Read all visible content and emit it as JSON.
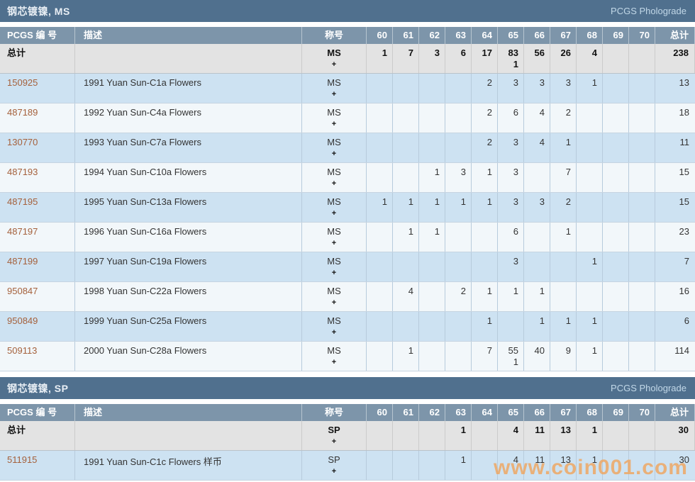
{
  "watermark": "www.coin001.com",
  "columns": {
    "pcgs": "PCGS 编 号",
    "desc": "描述",
    "designation": "称号",
    "grades": [
      "60",
      "61",
      "62",
      "63",
      "64",
      "65",
      "66",
      "67",
      "68",
      "69",
      "70"
    ],
    "total": "总计"
  },
  "sections": [
    {
      "title": "钢芯镀镍, MS",
      "brand": "PCGS Pholograde",
      "rows": [
        {
          "type": "total",
          "pcgs": "总计",
          "desc": "",
          "designation": "MS",
          "plus": "+",
          "cells": [
            [
              "1",
              ""
            ],
            [
              "7",
              ""
            ],
            [
              "3",
              ""
            ],
            [
              "6",
              ""
            ],
            [
              "17",
              ""
            ],
            [
              "83",
              "1"
            ],
            [
              "56",
              ""
            ],
            [
              "26",
              ""
            ],
            [
              "4",
              ""
            ],
            [
              "",
              ""
            ],
            [
              "",
              ""
            ]
          ],
          "total": "238"
        },
        {
          "pcgs": "150925",
          "desc": "1991 Yuan Sun-C1a Flowers",
          "designation": "MS",
          "plus": "+",
          "cells": [
            [
              "",
              ""
            ],
            [
              "",
              ""
            ],
            [
              "",
              ""
            ],
            [
              "",
              ""
            ],
            [
              "2",
              ""
            ],
            [
              "3",
              ""
            ],
            [
              "3",
              ""
            ],
            [
              "3",
              ""
            ],
            [
              "1",
              ""
            ],
            [
              "",
              ""
            ],
            [
              "",
              ""
            ]
          ],
          "total": "13"
        },
        {
          "pcgs": "487189",
          "desc": "1992 Yuan Sun-C4a Flowers",
          "designation": "MS",
          "plus": "+",
          "cells": [
            [
              "",
              ""
            ],
            [
              "",
              ""
            ],
            [
              "",
              ""
            ],
            [
              "",
              ""
            ],
            [
              "2",
              ""
            ],
            [
              "6",
              ""
            ],
            [
              "4",
              ""
            ],
            [
              "2",
              ""
            ],
            [
              "",
              ""
            ],
            [
              "",
              ""
            ],
            [
              "",
              ""
            ]
          ],
          "total": "18"
        },
        {
          "pcgs": "130770",
          "desc": "1993 Yuan Sun-C7a Flowers",
          "designation": "MS",
          "plus": "+",
          "cells": [
            [
              "",
              ""
            ],
            [
              "",
              ""
            ],
            [
              "",
              ""
            ],
            [
              "",
              ""
            ],
            [
              "2",
              ""
            ],
            [
              "3",
              ""
            ],
            [
              "4",
              ""
            ],
            [
              "1",
              ""
            ],
            [
              "",
              ""
            ],
            [
              "",
              ""
            ],
            [
              "",
              ""
            ]
          ],
          "total": "11"
        },
        {
          "pcgs": "487193",
          "desc": "1994 Yuan Sun-C10a Flowers",
          "designation": "MS",
          "plus": "+",
          "cells": [
            [
              "",
              ""
            ],
            [
              "",
              ""
            ],
            [
              "1",
              ""
            ],
            [
              "3",
              ""
            ],
            [
              "1",
              ""
            ],
            [
              "3",
              ""
            ],
            [
              "",
              ""
            ],
            [
              "7",
              ""
            ],
            [
              "",
              ""
            ],
            [
              "",
              ""
            ],
            [
              "",
              ""
            ]
          ],
          "total": "15"
        },
        {
          "pcgs": "487195",
          "desc": "1995 Yuan Sun-C13a Flowers",
          "designation": "MS",
          "plus": "+",
          "cells": [
            [
              "1",
              ""
            ],
            [
              "1",
              ""
            ],
            [
              "1",
              ""
            ],
            [
              "1",
              ""
            ],
            [
              "1",
              ""
            ],
            [
              "3",
              ""
            ],
            [
              "3",
              ""
            ],
            [
              "2",
              ""
            ],
            [
              "",
              ""
            ],
            [
              "",
              ""
            ],
            [
              "",
              ""
            ]
          ],
          "total": "15"
        },
        {
          "pcgs": "487197",
          "desc": "1996 Yuan Sun-C16a Flowers",
          "designation": "MS",
          "plus": "+",
          "cells": [
            [
              "",
              ""
            ],
            [
              "1",
              ""
            ],
            [
              "1",
              ""
            ],
            [
              "",
              ""
            ],
            [
              "",
              ""
            ],
            [
              "6",
              ""
            ],
            [
              "",
              ""
            ],
            [
              "1",
              ""
            ],
            [
              "",
              ""
            ],
            [
              "",
              ""
            ],
            [
              "",
              ""
            ]
          ],
          "total": "23"
        },
        {
          "pcgs": "487199",
          "desc": "1997 Yuan Sun-C19a Flowers",
          "designation": "MS",
          "plus": "+",
          "cells": [
            [
              "",
              ""
            ],
            [
              "",
              ""
            ],
            [
              "",
              ""
            ],
            [
              "",
              ""
            ],
            [
              "",
              ""
            ],
            [
              "3",
              ""
            ],
            [
              "",
              ""
            ],
            [
              "",
              ""
            ],
            [
              "1",
              ""
            ],
            [
              "",
              ""
            ],
            [
              "",
              ""
            ]
          ],
          "total": "7"
        },
        {
          "pcgs": "950847",
          "desc": "1998 Yuan Sun-C22a Flowers",
          "designation": "MS",
          "plus": "+",
          "cells": [
            [
              "",
              ""
            ],
            [
              "4",
              ""
            ],
            [
              "",
              ""
            ],
            [
              "2",
              ""
            ],
            [
              "1",
              ""
            ],
            [
              "1",
              ""
            ],
            [
              "1",
              ""
            ],
            [
              "",
              ""
            ],
            [
              "",
              ""
            ],
            [
              "",
              ""
            ],
            [
              "",
              ""
            ]
          ],
          "total": "16"
        },
        {
          "pcgs": "950849",
          "desc": "1999 Yuan Sun-C25a Flowers",
          "designation": "MS",
          "plus": "+",
          "cells": [
            [
              "",
              ""
            ],
            [
              "",
              ""
            ],
            [
              "",
              ""
            ],
            [
              "",
              ""
            ],
            [
              "1",
              ""
            ],
            [
              "",
              ""
            ],
            [
              "1",
              ""
            ],
            [
              "1",
              ""
            ],
            [
              "1",
              ""
            ],
            [
              "",
              ""
            ],
            [
              "",
              ""
            ]
          ],
          "total": "6"
        },
        {
          "pcgs": "509113",
          "desc": "2000 Yuan Sun-C28a Flowers",
          "designation": "MS",
          "plus": "+",
          "cells": [
            [
              "",
              ""
            ],
            [
              "1",
              ""
            ],
            [
              "",
              ""
            ],
            [
              "",
              ""
            ],
            [
              "7",
              ""
            ],
            [
              "55",
              "1"
            ],
            [
              "40",
              ""
            ],
            [
              "9",
              ""
            ],
            [
              "1",
              ""
            ],
            [
              "",
              ""
            ],
            [
              "",
              ""
            ]
          ],
          "total": "114"
        }
      ]
    },
    {
      "title": "钢芯镀镍, SP",
      "brand": "PCGS Pholograde",
      "rows": [
        {
          "type": "total",
          "pcgs": "总计",
          "desc": "",
          "designation": "SP",
          "plus": "+",
          "cells": [
            [
              "",
              ""
            ],
            [
              "",
              ""
            ],
            [
              "",
              ""
            ],
            [
              "1",
              ""
            ],
            [
              "",
              ""
            ],
            [
              "4",
              ""
            ],
            [
              "11",
              ""
            ],
            [
              "13",
              ""
            ],
            [
              "1",
              ""
            ],
            [
              "",
              ""
            ],
            [
              "",
              ""
            ]
          ],
          "total": "30"
        },
        {
          "pcgs": "511915",
          "desc": "1991 Yuan Sun-C1c Flowers 样币",
          "designation": "SP",
          "plus": "+",
          "cells": [
            [
              "",
              ""
            ],
            [
              "",
              ""
            ],
            [
              "",
              ""
            ],
            [
              "1",
              ""
            ],
            [
              "",
              ""
            ],
            [
              "4",
              ""
            ],
            [
              "11",
              ""
            ],
            [
              "13",
              ""
            ],
            [
              "1",
              ""
            ],
            [
              "",
              ""
            ],
            [
              "",
              ""
            ]
          ],
          "total": "30"
        }
      ]
    }
  ]
}
